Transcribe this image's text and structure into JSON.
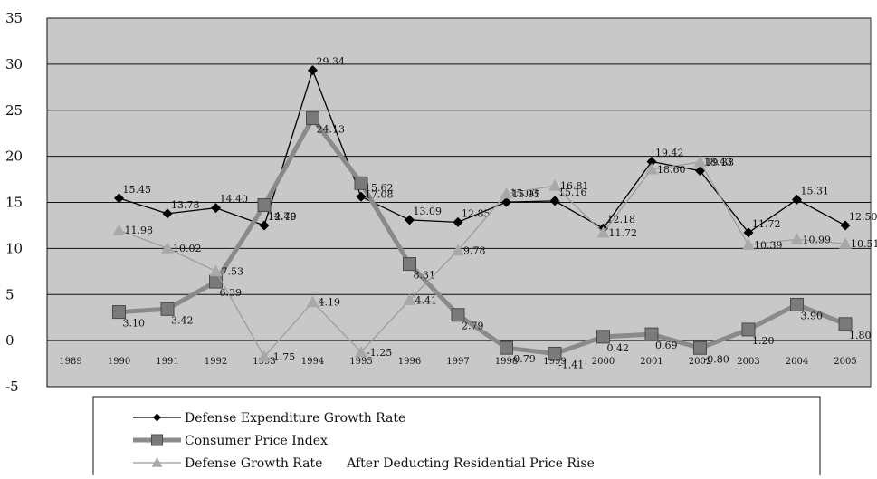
{
  "chart_data": {
    "type": "line",
    "categories": [
      "1989",
      "1990",
      "1991",
      "1992",
      "1993",
      "1994",
      "1995",
      "1996",
      "1997",
      "1998",
      "1999",
      "2000",
      "2001",
      "2002",
      "2003",
      "2004",
      "2005"
    ],
    "ylim": [
      -5,
      35
    ],
    "yticks": [
      "35",
      "30",
      "25",
      "20",
      "15",
      "10",
      "5",
      "0",
      "-5"
    ],
    "grid": true,
    "legend_position": "bottom",
    "plot_background": "#c8c8c8",
    "series": [
      {
        "name": "Defense Expenditure Growth Rate",
        "color": "#000000",
        "marker": "diamond",
        "values": [
          null,
          15.45,
          13.78,
          14.4,
          12.49,
          29.34,
          15.62,
          13.09,
          12.85,
          15.03,
          15.16,
          12.18,
          19.42,
          18.43,
          11.72,
          15.31,
          12.5
        ],
        "labels": [
          null,
          "15.45",
          "13.78",
          "14.40",
          "12.49",
          "29.34",
          "15.62",
          "13.09",
          "12.85",
          "15.03",
          "15.16",
          "12.18",
          "19.42",
          "18.43",
          "11.72",
          "15.31",
          "12.50"
        ]
      },
      {
        "name": "Consumer Price Index",
        "color": "#8a8a8a",
        "marker": "square",
        "values": [
          null,
          3.1,
          3.42,
          6.39,
          14.7,
          24.13,
          17.08,
          8.31,
          2.79,
          -0.79,
          -1.41,
          0.42,
          0.69,
          -0.8,
          1.2,
          3.9,
          1.8
        ],
        "labels": [
          null,
          "3.10",
          "3.42",
          "6.39",
          "14.70",
          "24.13",
          "17.08",
          "8.31",
          "2.79",
          "-0.79",
          "-1.41",
          "0.42",
          "0.69",
          "-0.80",
          "1.20",
          "3.90",
          "1.80"
        ]
      },
      {
        "name": "Defense Growth Rate      After Deducting Residential Price Rise",
        "color": "#9a9a9a",
        "marker": "triangle",
        "values": [
          null,
          11.98,
          10.02,
          7.53,
          -1.75,
          4.19,
          -1.25,
          4.41,
          9.78,
          15.95,
          16.81,
          11.72,
          18.6,
          19.38,
          10.39,
          10.99,
          10.51
        ],
        "labels": [
          null,
          "11.98",
          "10.02",
          "7.53",
          "-1.75",
          "4.19",
          "-1.25",
          "4.41",
          "9.78",
          "15.95",
          "16.81",
          "11.72",
          "18.60",
          "19.38",
          "10.39",
          "10.99",
          "10.51"
        ]
      }
    ]
  }
}
